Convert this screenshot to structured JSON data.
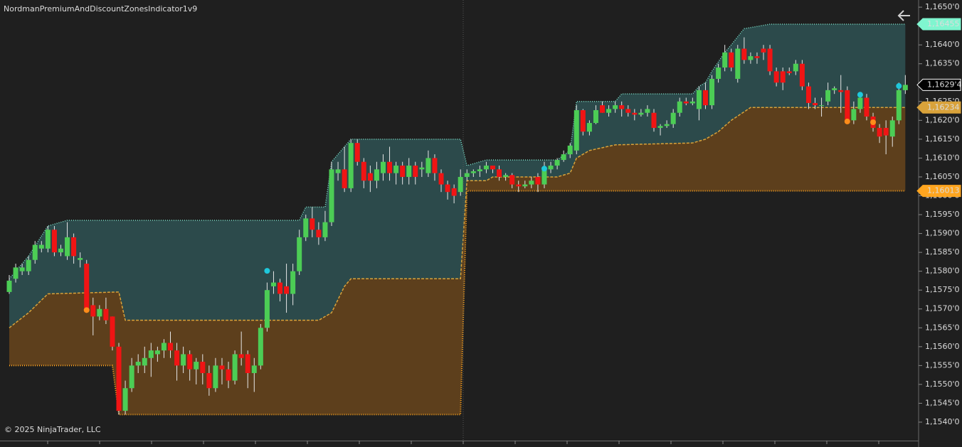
{
  "chart_data": {
    "type": "candlestick",
    "title": "NordmanPremiumAndDiscountZonesIndicator1v9",
    "copyright": "© 2025 NinjaTrader, LLC",
    "ylim": [
      1.15351,
      1.16519
    ],
    "yticks": [
      {
        "value": 1.165,
        "label": "1,1650'0"
      },
      {
        "value": 1.1645,
        "label": "1,1645'0"
      },
      {
        "value": 1.164,
        "label": "1,1640'0"
      },
      {
        "value": 1.1635,
        "label": "1,1635'0"
      },
      {
        "value": 1.163,
        "label": "1,1630'0"
      },
      {
        "value": 1.1625,
        "label": "1,1625'0"
      },
      {
        "value": 1.162,
        "label": "1,1620'0"
      },
      {
        "value": 1.1615,
        "label": "1,1615'0"
      },
      {
        "value": 1.161,
        "label": "1,1610'0"
      },
      {
        "value": 1.1605,
        "label": "1,1605'0"
      },
      {
        "value": 1.16,
        "label": "1,1600'0"
      },
      {
        "value": 1.1595,
        "label": "1,1595'0"
      },
      {
        "value": 1.159,
        "label": "1,1590'0"
      },
      {
        "value": 1.1585,
        "label": "1,1585'0"
      },
      {
        "value": 1.158,
        "label": "1,1580'0"
      },
      {
        "value": 1.1575,
        "label": "1,1575'0"
      },
      {
        "value": 1.157,
        "label": "1,1570'0"
      },
      {
        "value": 1.1565,
        "label": "1,1565'0"
      },
      {
        "value": 1.156,
        "label": "1,1560'0"
      },
      {
        "value": 1.1555,
        "label": "1,1555'0"
      },
      {
        "value": 1.155,
        "label": "1,1550'0"
      },
      {
        "value": 1.1545,
        "label": "1,1545'0"
      },
      {
        "value": 1.154,
        "label": "1,1540'0"
      }
    ],
    "up_color": "#4ccd55",
    "down_color": "#f01414",
    "wick_color": "#e6e6e6",
    "candles": [
      [
        1.15745,
        1.1579,
        1.1574,
        1.15775
      ],
      [
        1.1578,
        1.1582,
        1.1577,
        1.1581
      ],
      [
        1.158,
        1.1582,
        1.1579,
        1.1581
      ],
      [
        1.158,
        1.1584,
        1.1579,
        1.1583
      ],
      [
        1.1583,
        1.1588,
        1.1582,
        1.1587
      ],
      [
        1.1586,
        1.1588,
        1.1585,
        1.1587
      ],
      [
        1.1586,
        1.1592,
        1.1585,
        1.1591
      ],
      [
        1.1591,
        1.1592,
        1.1584,
        1.1585
      ],
      [
        1.1585,
        1.1587,
        1.1584,
        1.1586
      ],
      [
        1.1584,
        1.1593,
        1.1583,
        1.1589
      ],
      [
        1.1589,
        1.159,
        1.1582,
        1.1584
      ],
      [
        1.1583,
        1.1585,
        1.1581,
        1.15835
      ],
      [
        1.1582,
        1.1583,
        1.1569,
        1.157
      ],
      [
        1.1571,
        1.1573,
        1.1563,
        1.1568
      ],
      [
        1.1568,
        1.1571,
        1.1567,
        1.157
      ],
      [
        1.157,
        1.1573,
        1.1566,
        1.1567
      ],
      [
        1.1568,
        1.1568,
        1.1559,
        1.156
      ],
      [
        1.156,
        1.1561,
        1.1542,
        1.1543
      ],
      [
        1.1543,
        1.1551,
        1.1542,
        1.1549
      ],
      [
        1.1549,
        1.1557,
        1.1548,
        1.1555
      ],
      [
        1.1555,
        1.1558,
        1.1553,
        1.1556
      ],
      [
        1.1555,
        1.156,
        1.1553,
        1.1557
      ],
      [
        1.1557,
        1.1561,
        1.1552,
        1.1559
      ],
      [
        1.1558,
        1.156,
        1.1556,
        1.1559
      ],
      [
        1.1559,
        1.1562,
        1.1557,
        1.1561
      ],
      [
        1.1561,
        1.1564,
        1.1557,
        1.1559
      ],
      [
        1.1559,
        1.1561,
        1.1551,
        1.1555
      ],
      [
        1.1555,
        1.156,
        1.1553,
        1.1558
      ],
      [
        1.1558,
        1.1559,
        1.1551,
        1.1554
      ],
      [
        1.1554,
        1.1557,
        1.155,
        1.1556
      ],
      [
        1.1556,
        1.1558,
        1.155,
        1.1553
      ],
      [
        1.1553,
        1.1555,
        1.1547,
        1.1549
      ],
      [
        1.1549,
        1.1557,
        1.1548,
        1.1555
      ],
      [
        1.1555,
        1.1557,
        1.155,
        1.1554
      ],
      [
        1.1554,
        1.1556,
        1.1549,
        1.1551
      ],
      [
        1.1551,
        1.1559,
        1.155,
        1.1558
      ],
      [
        1.1558,
        1.1564,
        1.1555,
        1.1557
      ],
      [
        1.1558,
        1.1559,
        1.1549,
        1.1553
      ],
      [
        1.1553,
        1.1557,
        1.1548,
        1.1555
      ],
      [
        1.1555,
        1.1566,
        1.1554,
        1.1565
      ],
      [
        1.1565,
        1.1577,
        1.1564,
        1.1575
      ],
      [
        1.1576,
        1.158,
        1.1574,
        1.1577
      ],
      [
        1.1577,
        1.1578,
        1.1572,
        1.1574
      ],
      [
        1.1576,
        1.1582,
        1.1569,
        1.1574
      ],
      [
        1.1574,
        1.1582,
        1.1571,
        1.158
      ],
      [
        1.158,
        1.1591,
        1.1579,
        1.1589
      ],
      [
        1.1589,
        1.1595,
        1.1588,
        1.1594
      ],
      [
        1.1594,
        1.1597,
        1.1589,
        1.1591
      ],
      [
        1.1591,
        1.1593,
        1.1587,
        1.1589
      ],
      [
        1.1589,
        1.1596,
        1.1588,
        1.1593
      ],
      [
        1.1593,
        1.1609,
        1.1592,
        1.1607
      ],
      [
        1.1606,
        1.1609,
        1.1604,
        1.1607
      ],
      [
        1.1607,
        1.1613,
        1.1601,
        1.1602
      ],
      [
        1.1602,
        1.1615,
        1.1601,
        1.1614
      ],
      [
        1.1614,
        1.1615,
        1.1608,
        1.1609
      ],
      [
        1.1609,
        1.161,
        1.1602,
        1.1604
      ],
      [
        1.1606,
        1.1608,
        1.1601,
        1.1604
      ],
      [
        1.1604,
        1.1609,
        1.1602,
        1.1607
      ],
      [
        1.1606,
        1.1611,
        1.1604,
        1.1609
      ],
      [
        1.1609,
        1.1613,
        1.1604,
        1.1606
      ],
      [
        1.1606,
        1.1609,
        1.1603,
        1.1608
      ],
      [
        1.1608,
        1.1609,
        1.1603,
        1.1605
      ],
      [
        1.1605,
        1.161,
        1.1603,
        1.1608
      ],
      [
        1.1608,
        1.1609,
        1.1603,
        1.1605
      ],
      [
        1.1607,
        1.1609,
        1.1605,
        1.16075
      ],
      [
        1.1606,
        1.1612,
        1.1605,
        1.161
      ],
      [
        1.161,
        1.1611,
        1.1604,
        1.1606
      ],
      [
        1.1606,
        1.1607,
        1.1601,
        1.1603
      ],
      [
        1.1603,
        1.1604,
        1.1599,
        1.1601
      ],
      [
        1.1602,
        1.1603,
        1.1598,
        1.16
      ],
      [
        1.1601,
        1.1607,
        1.16,
        1.1605
      ],
      [
        1.1605,
        1.1607,
        1.1604,
        1.1606
      ],
      [
        1.1606,
        1.1607,
        1.1605,
        1.16065
      ],
      [
        1.16065,
        1.1608,
        1.1605,
        1.1607
      ],
      [
        1.1607,
        1.1609,
        1.1606,
        1.1608
      ],
      [
        1.1608,
        1.1608,
        1.1606,
        1.1607
      ],
      [
        1.1607,
        1.1608,
        1.1604,
        1.1605
      ],
      [
        1.1605,
        1.1606,
        1.1604,
        1.16055
      ],
      [
        1.16055,
        1.1606,
        1.1602,
        1.1603
      ],
      [
        1.1603,
        1.1604,
        1.1601,
        1.16025
      ],
      [
        1.16025,
        1.1604,
        1.1602,
        1.1603
      ],
      [
        1.1603,
        1.1605,
        1.1602,
        1.1604
      ],
      [
        1.1605,
        1.1606,
        1.1601,
        1.1603
      ],
      [
        1.1603,
        1.1609,
        1.1602,
        1.1607
      ],
      [
        1.1607,
        1.1609,
        1.1606,
        1.1608
      ],
      [
        1.1608,
        1.161,
        1.1607,
        1.16095
      ],
      [
        1.16095,
        1.1612,
        1.1609,
        1.1611
      ],
      [
        1.1611,
        1.1614,
        1.161,
        1.16133
      ],
      [
        1.1612,
        1.1624,
        1.1611,
        1.16227
      ],
      [
        1.16227,
        1.1623,
        1.1616,
        1.1617
      ],
      [
        1.1617,
        1.162,
        1.1616,
        1.16193
      ],
      [
        1.16193,
        1.1624,
        1.1619,
        1.16227
      ],
      [
        1.1624,
        1.1625,
        1.1622,
        1.1622
      ],
      [
        1.1622,
        1.1624,
        1.1621,
        1.1623
      ],
      [
        1.1623,
        1.1625,
        1.1622,
        1.1624
      ],
      [
        1.1624,
        1.1625,
        1.1621,
        1.1623
      ],
      [
        1.1623,
        1.1624,
        1.1621,
        1.1622
      ],
      [
        1.1622,
        1.1623,
        1.162,
        1.16215
      ],
      [
        1.16215,
        1.1623,
        1.1621,
        1.1622
      ],
      [
        1.1622,
        1.1624,
        1.1621,
        1.1623
      ],
      [
        1.1622,
        1.1623,
        1.1617,
        1.1618
      ],
      [
        1.1618,
        1.1619,
        1.1616,
        1.16185
      ],
      [
        1.16185,
        1.162,
        1.1618,
        1.1619
      ],
      [
        1.1619,
        1.1623,
        1.1618,
        1.1622
      ],
      [
        1.1622,
        1.1626,
        1.1621,
        1.1625
      ],
      [
        1.1625,
        1.1626,
        1.1624,
        1.16245
      ],
      [
        1.16245,
        1.1626,
        1.1624,
        1.1625
      ],
      [
        1.1623,
        1.1629,
        1.162,
        1.1628
      ],
      [
        1.1628,
        1.163,
        1.1623,
        1.1624
      ],
      [
        1.1624,
        1.1632,
        1.1623,
        1.1631
      ],
      [
        1.1631,
        1.1635,
        1.163,
        1.1634
      ],
      [
        1.1634,
        1.164,
        1.1633,
        1.1638
      ],
      [
        1.1638,
        1.1639,
        1.1633,
        1.1634
      ],
      [
        1.1631,
        1.164,
        1.163,
        1.1639
      ],
      [
        1.1639,
        1.1642,
        1.1635,
        1.1636
      ],
      [
        1.1636,
        1.1638,
        1.1635,
        1.1637
      ],
      [
        1.1637,
        1.1638,
        1.1635,
        1.16365
      ],
      [
        1.1639,
        1.164,
        1.1636,
        1.1638
      ],
      [
        1.1639,
        1.164,
        1.1632,
        1.1633
      ],
      [
        1.1633,
        1.1634,
        1.1629,
        1.163
      ],
      [
        1.1633,
        1.1634,
        1.1628,
        1.163
      ],
      [
        1.1633,
        1.1634,
        1.1632,
        1.16325
      ],
      [
        1.1633,
        1.1636,
        1.1632,
        1.1635
      ],
      [
        1.1635,
        1.1636,
        1.1628,
        1.1629
      ],
      [
        1.1629,
        1.163,
        1.1623,
        1.16246
      ],
      [
        1.16246,
        1.1626,
        1.1623,
        1.1624
      ],
      [
        1.1624,
        1.1626,
        1.1621,
        1.1624
      ],
      [
        1.1625,
        1.163,
        1.1624,
        1.1628
      ],
      [
        1.1628,
        1.1629,
        1.1627,
        1.16285
      ],
      [
        1.1628,
        1.1632,
        1.1622,
        1.16275
      ],
      [
        1.1628,
        1.1629,
        1.162,
        1.162
      ],
      [
        1.162,
        1.1625,
        1.1619,
        1.1623
      ],
      [
        1.1623,
        1.1627,
        1.1622,
        1.1626
      ],
      [
        1.1626,
        1.1627,
        1.162,
        1.1621
      ],
      [
        1.1621,
        1.1622,
        1.1617,
        1.1618
      ],
      [
        1.1618,
        1.1619,
        1.1614,
        1.16157
      ],
      [
        1.1618,
        1.162,
        1.1611,
        1.1616
      ],
      [
        1.16157,
        1.1621,
        1.1613,
        1.162
      ],
      [
        1.162,
        1.163,
        1.1619,
        1.1628
      ],
      [
        1.1628,
        1.1632,
        1.1627,
        1.16294
      ]
    ],
    "premium_fill": "#2c4a4b",
    "discount_fill": "#5d3f1c",
    "zones": {
      "premium_top": {
        "color": "#7fe3cc",
        "x": [
          0,
          3,
          6,
          9,
          45,
          46,
          49,
          50,
          53,
          70,
          71,
          74,
          85,
          87,
          88,
          94,
          95,
          106,
          107,
          108,
          109,
          111,
          112,
          114,
          118,
          139
        ],
        "values": [
          1.1578,
          1.1584,
          1.1592,
          1.15935,
          1.15935,
          1.1597,
          1.1597,
          1.1609,
          1.1615,
          1.1615,
          1.1608,
          1.16095,
          1.16095,
          1.1612,
          1.1625,
          1.1625,
          1.1627,
          1.1627,
          1.1629,
          1.163,
          1.1633,
          1.1638,
          1.164,
          1.16443,
          1.16455,
          1.16455
        ]
      },
      "equilibrium": {
        "color": "#d9a23a",
        "x": [
          0,
          3,
          6,
          17,
          18,
          48,
          50,
          52,
          53,
          70,
          71,
          74,
          75,
          85,
          87,
          88,
          90,
          94,
          106,
          108,
          110,
          112,
          115,
          139
        ],
        "values": [
          1.1565,
          1.1569,
          1.1574,
          1.15745,
          1.1567,
          1.1567,
          1.1569,
          1.1576,
          1.1578,
          1.1578,
          1.1604,
          1.1604,
          1.1605,
          1.1605,
          1.1606,
          1.161,
          1.1612,
          1.16135,
          1.1614,
          1.1615,
          1.1617,
          1.162,
          1.16234,
          1.16234
        ]
      },
      "discount_bottom": {
        "color": "#ffa51f",
        "x": [
          0,
          16,
          17,
          70,
          71,
          139
        ],
        "values": [
          1.1555,
          1.1555,
          1.1542,
          1.1542,
          1.16013,
          1.16013
        ]
      }
    },
    "signals": [
      {
        "index": 12,
        "price": 1.15697,
        "color": "#ff8c1a"
      },
      {
        "index": 40,
        "price": 1.15801,
        "color": "#1ec8dc"
      },
      {
        "index": 83,
        "price": 1.16072,
        "color": "#1ec8dc"
      },
      {
        "index": 130,
        "price": 1.16197,
        "color": "#ff8c1a"
      },
      {
        "index": 132,
        "price": 1.16268,
        "color": "#1ec8dc"
      },
      {
        "index": 134,
        "price": 1.16195,
        "color": "#ff8c1a"
      },
      {
        "index": 138,
        "price": 1.16291,
        "color": "#1ec8dc"
      }
    ],
    "price_markers": [
      {
        "value": 1.16455,
        "label": "1,16455",
        "color": "#7ff5cf",
        "text_color": "#111111"
      },
      {
        "value": 1.16294,
        "label": "1,1629'4",
        "color": "#000000",
        "text_color": "#ffffff"
      },
      {
        "value": 1.16234,
        "label": "1,16234",
        "color": "#d9a23a",
        "text_color": "#111111"
      },
      {
        "value": 1.16013,
        "label": "1,16013",
        "color": "#ffa51f",
        "text_color": "#111111"
      }
    ]
  }
}
